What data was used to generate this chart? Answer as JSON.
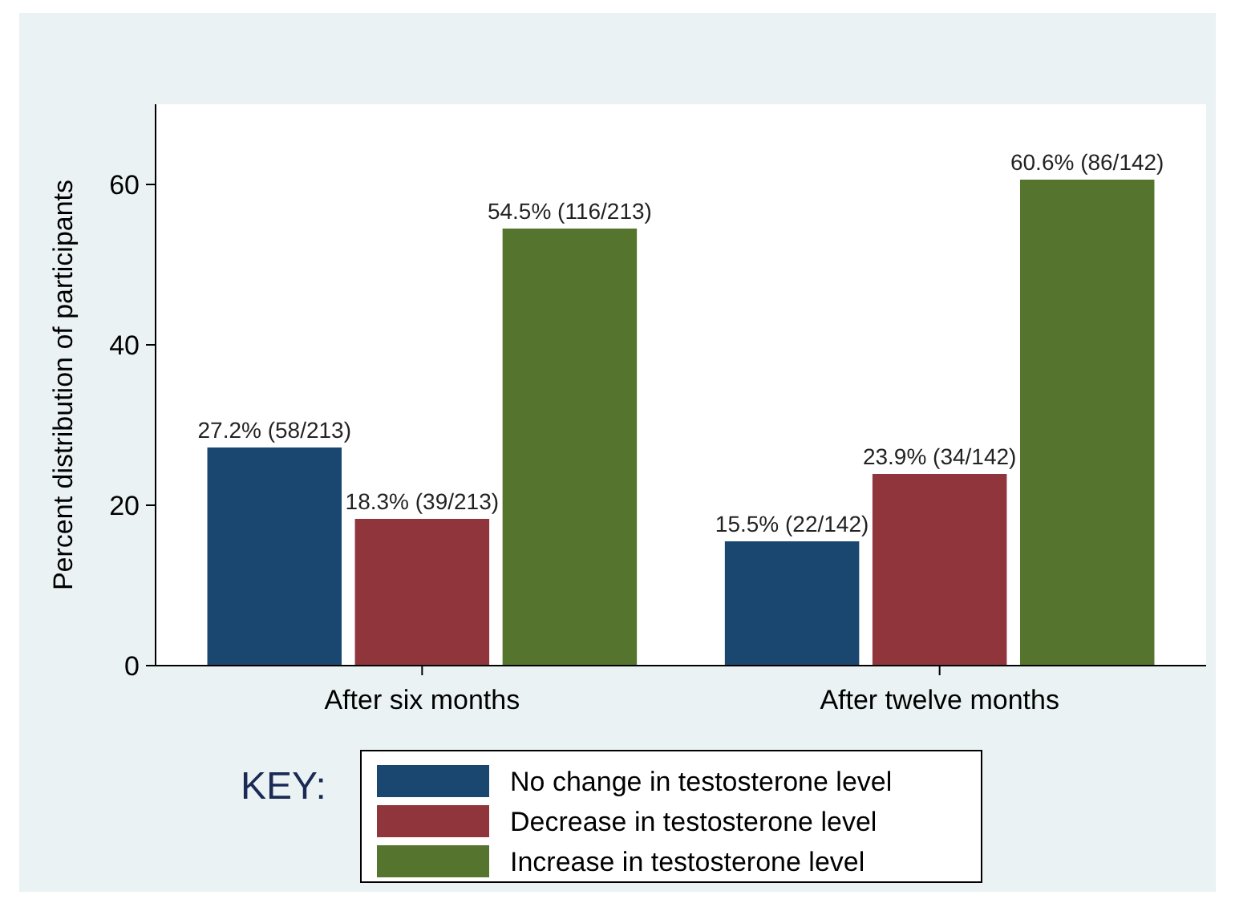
{
  "chart_data": {
    "type": "bar",
    "ylabel": "Percent distribution of participants",
    "legend_title": "KEY:",
    "categories": [
      "After six months",
      "After twelve months"
    ],
    "series": [
      {
        "name": "No change in testosterone level",
        "color": "#1a476f",
        "values": [
          27.2,
          15.5
        ],
        "value_labels": [
          "27.2% (58/213)",
          "15.5% (22/142)"
        ]
      },
      {
        "name": "Decrease in testosterone level",
        "color": "#90353b",
        "values": [
          18.3,
          23.9
        ],
        "value_labels": [
          "18.3% (39/213)",
          "23.9% (34/142)"
        ]
      },
      {
        "name": "Increase in testosterone level",
        "color": "#55752f",
        "values": [
          54.5,
          60.6
        ],
        "value_labels": [
          "54.5% (116/213)",
          "60.6% (86/142)"
        ]
      }
    ],
    "ylim": [
      0,
      70
    ],
    "yticks": [
      0,
      20,
      40,
      60
    ],
    "grid": false,
    "legend": "bottom"
  }
}
